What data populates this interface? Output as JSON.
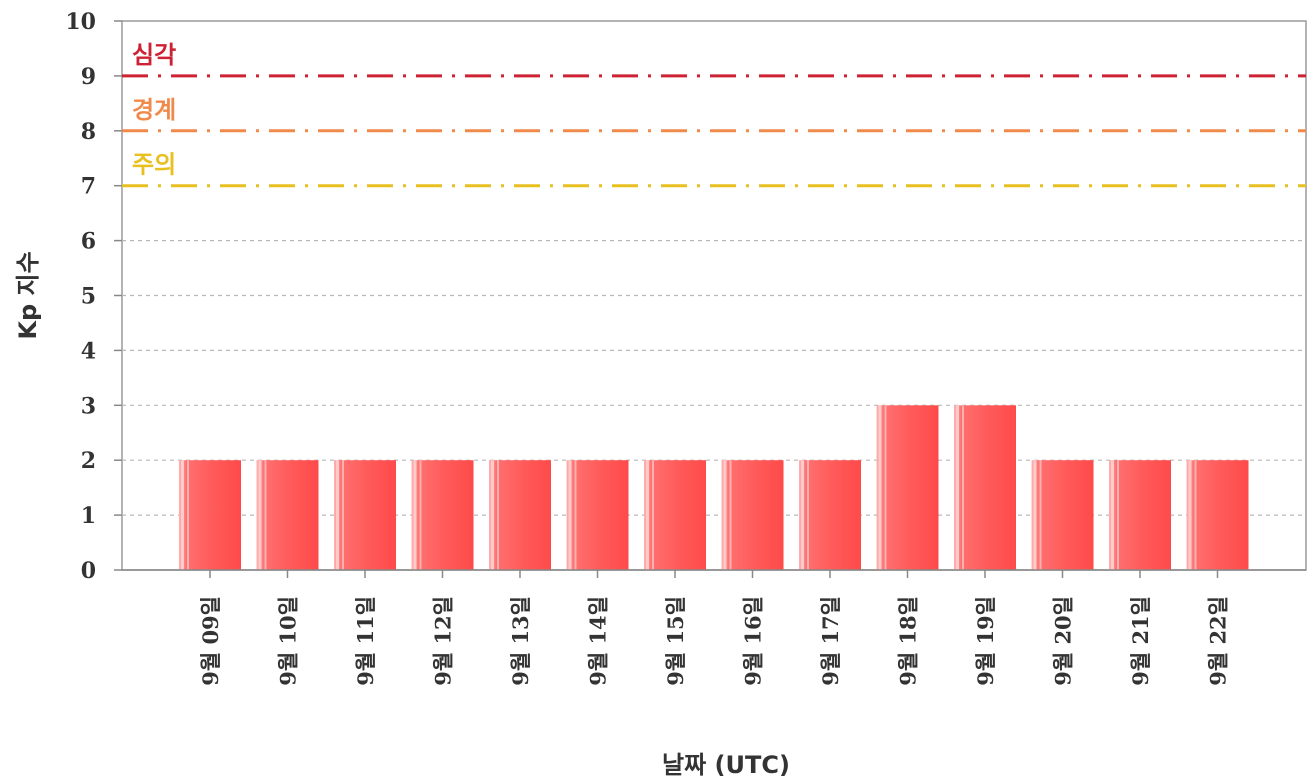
{
  "chart_data": {
    "type": "bar",
    "title": "",
    "xlabel": "날짜 (UTC)",
    "ylabel": "Kp 지수",
    "ylim": [
      0,
      10
    ],
    "yticks": [
      0,
      1,
      2,
      3,
      4,
      5,
      6,
      7,
      8,
      9,
      10
    ],
    "grid": true,
    "categories": [
      "9월 09일",
      "9월 10일",
      "9월 11일",
      "9월 12일",
      "9월 13일",
      "9월 14일",
      "9월 15일",
      "9월 16일",
      "9월 17일",
      "9월 18일",
      "9월 19일",
      "9월 20일",
      "9월 21일",
      "9월 22일"
    ],
    "values": [
      2,
      2,
      2,
      2,
      2,
      2,
      2,
      2,
      2,
      3,
      3,
      2,
      2,
      2
    ],
    "bar_color": "#ff5555",
    "thresholds": [
      {
        "label": "심각",
        "value": 9,
        "color": "#cc2233"
      },
      {
        "label": "경계",
        "value": 8,
        "color": "#f08a4b"
      },
      {
        "label": "주의",
        "value": 7,
        "color": "#e8c020"
      }
    ]
  }
}
